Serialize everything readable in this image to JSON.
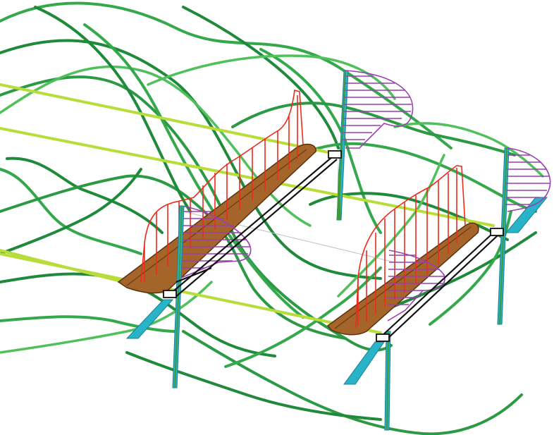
{
  "colors": {
    "background": "#ffffff",
    "wake_filament_dark": "#1f8a3a",
    "wake_filament_mid": "#35a84c",
    "wake_filament_light": "#4fc05a",
    "tower_line": "#b8dc3a",
    "blade_fill": "#a5642a",
    "blade_outline": "#5a3010",
    "blade_load_lines": "#ee2a1a",
    "tower_load_lines": "#9a3fb0",
    "tower_body": "#29b3c9",
    "tower_edge": "#1b7f92",
    "tower_green_edge": "#3f9a3a",
    "drivetrain_links": "#111111",
    "hub_marker": "#111111",
    "connector_light": "#bfbfbf"
  },
  "icons": {
    "rotor_left": "rotor-blade-icon",
    "rotor_right": "rotor-blade-icon",
    "tower": "tower-icon",
    "hub": "hub-icon"
  }
}
